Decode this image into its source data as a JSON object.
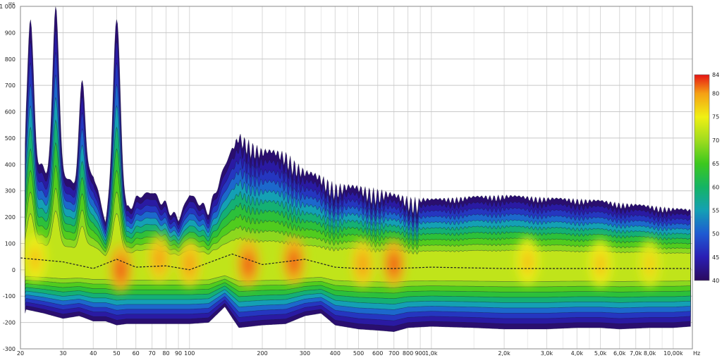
{
  "chart_data": {
    "type": "heatmap",
    "title": "",
    "x_scale": "log",
    "xlim": [
      20,
      12000
    ],
    "ylim": [
      -300,
      1000
    ],
    "x_unit": "Hz",
    "y_unit": "ms",
    "x_ticks": [
      {
        "value": 20,
        "label": "20"
      },
      {
        "value": 30,
        "label": "30"
      },
      {
        "value": 40,
        "label": "40"
      },
      {
        "value": 50,
        "label": "50"
      },
      {
        "value": 60,
        "label": "60"
      },
      {
        "value": 70,
        "label": "70"
      },
      {
        "value": 80,
        "label": "80"
      },
      {
        "value": 90,
        "label": "90"
      },
      {
        "value": 100,
        "label": "100"
      },
      {
        "value": 200,
        "label": "200"
      },
      {
        "value": 300,
        "label": "300"
      },
      {
        "value": 400,
        "label": "400"
      },
      {
        "value": 500,
        "label": "500"
      },
      {
        "value": 600,
        "label": "600"
      },
      {
        "value": 700,
        "label": "700"
      },
      {
        "value": 800,
        "label": "800"
      },
      {
        "value": 900,
        "label": "900"
      },
      {
        "value": 1000,
        "label": "1,0k"
      },
      {
        "value": 2000,
        "label": "2,0k"
      },
      {
        "value": 3000,
        "label": "3,0k"
      },
      {
        "value": 4000,
        "label": "4,0k"
      },
      {
        "value": 5000,
        "label": "5,0k"
      },
      {
        "value": 6000,
        "label": "6,0k"
      },
      {
        "value": 7000,
        "label": "7,0k"
      },
      {
        "value": 8000,
        "label": "8,0k"
      },
      {
        "value": 10000,
        "label": "10,00k"
      }
    ],
    "y_ticks": [
      {
        "value": 1000,
        "label": "1 000"
      },
      {
        "value": 900,
        "label": "900"
      },
      {
        "value": 800,
        "label": "800"
      },
      {
        "value": 700,
        "label": "700"
      },
      {
        "value": 600,
        "label": "600"
      },
      {
        "value": 500,
        "label": "500"
      },
      {
        "value": 400,
        "label": "400"
      },
      {
        "value": 300,
        "label": "300"
      },
      {
        "value": 200,
        "label": "200"
      },
      {
        "value": 100,
        "label": "100"
      },
      {
        "value": 0,
        "label": "0"
      },
      {
        "value": -100,
        "label": "-100"
      },
      {
        "value": -200,
        "label": "-200"
      },
      {
        "value": -300,
        "label": "-300"
      }
    ],
    "colorbar": {
      "min": 40,
      "max": 84,
      "labels": [
        "84",
        "80",
        "75",
        "70",
        "65",
        "60",
        "55",
        "50",
        "45",
        "40"
      ],
      "stops": [
        {
          "value": 40,
          "color": "#2a0a5e"
        },
        {
          "value": 45,
          "color": "#2a1eb4"
        },
        {
          "value": 50,
          "color": "#1e5ad2"
        },
        {
          "value": 55,
          "color": "#14a0b4"
        },
        {
          "value": 60,
          "color": "#14b464"
        },
        {
          "value": 65,
          "color": "#3cc81e"
        },
        {
          "value": 70,
          "color": "#a0dc1e"
        },
        {
          "value": 75,
          "color": "#f0f014"
        },
        {
          "value": 80,
          "color": "#f5a014"
        },
        {
          "value": 84,
          "color": "#e61414"
        }
      ]
    },
    "ridge": [
      {
        "f": 20,
        "top": -300,
        "bottom": -300
      },
      {
        "f": 21,
        "top": 420,
        "bottom": -150
      },
      {
        "f": 25,
        "top": 400,
        "bottom": -165
      },
      {
        "f": 30,
        "top": 360,
        "bottom": -185
      },
      {
        "f": 35,
        "top": 320,
        "bottom": -175
      },
      {
        "f": 40,
        "top": 380,
        "bottom": -195
      },
      {
        "f": 45,
        "top": 180,
        "bottom": -195
      },
      {
        "f": 50,
        "top": 500,
        "bottom": -210
      },
      {
        "f": 55,
        "top": 240,
        "bottom": -205
      },
      {
        "f": 60,
        "top": 280,
        "bottom": -205
      },
      {
        "f": 70,
        "top": 300,
        "bottom": -205
      },
      {
        "f": 80,
        "top": 260,
        "bottom": -205
      },
      {
        "f": 90,
        "top": 200,
        "bottom": -205
      },
      {
        "f": 100,
        "top": 290,
        "bottom": -205
      },
      {
        "f": 120,
        "top": 240,
        "bottom": -200
      },
      {
        "f": 140,
        "top": 400,
        "bottom": -140
      },
      {
        "f": 160,
        "top": 520,
        "bottom": -220
      },
      {
        "f": 200,
        "top": 460,
        "bottom": -210
      },
      {
        "f": 250,
        "top": 450,
        "bottom": -205
      },
      {
        "f": 300,
        "top": 380,
        "bottom": -175
      },
      {
        "f": 350,
        "top": 360,
        "bottom": -165
      },
      {
        "f": 400,
        "top": 330,
        "bottom": -210
      },
      {
        "f": 500,
        "top": 320,
        "bottom": -225
      },
      {
        "f": 600,
        "top": 310,
        "bottom": -230
      },
      {
        "f": 700,
        "top": 290,
        "bottom": -235
      },
      {
        "f": 800,
        "top": 280,
        "bottom": -220
      },
      {
        "f": 1000,
        "top": 270,
        "bottom": -215
      },
      {
        "f": 1500,
        "top": 280,
        "bottom": -220
      },
      {
        "f": 2000,
        "top": 285,
        "bottom": -225
      },
      {
        "f": 3000,
        "top": 275,
        "bottom": -225
      },
      {
        "f": 4000,
        "top": 270,
        "bottom": -220
      },
      {
        "f": 5000,
        "top": 265,
        "bottom": -220
      },
      {
        "f": 6000,
        "top": 255,
        "bottom": -225
      },
      {
        "f": 8000,
        "top": 245,
        "bottom": -220
      },
      {
        "f": 10000,
        "top": 235,
        "bottom": -220
      },
      {
        "f": 11800,
        "top": 230,
        "bottom": -215
      }
    ],
    "low_freq_spikes": [
      {
        "f": 22,
        "top": 950
      },
      {
        "f": 28,
        "top": 1000
      },
      {
        "f": 36,
        "top": 720
      },
      {
        "f": 50,
        "top": 950
      }
    ],
    "hotspots": [
      {
        "f": 23,
        "t": 40,
        "level": 78
      },
      {
        "f": 52,
        "t": 0,
        "level": 82
      },
      {
        "f": 75,
        "t": 40,
        "level": 80
      },
      {
        "f": 100,
        "t": 20,
        "level": 80
      },
      {
        "f": 175,
        "t": 20,
        "level": 82
      },
      {
        "f": 270,
        "t": 30,
        "level": 82
      },
      {
        "f": 520,
        "t": 20,
        "level": 80
      },
      {
        "f": 700,
        "t": 20,
        "level": 82
      },
      {
        "f": 2500,
        "t": 30,
        "level": 78
      },
      {
        "f": 5000,
        "t": 20,
        "level": 78
      },
      {
        "f": 8000,
        "t": 20,
        "level": 77
      }
    ],
    "peak_path": [
      {
        "f": 20,
        "t": 45
      },
      {
        "f": 30,
        "t": 30
      },
      {
        "f": 40,
        "t": 5
      },
      {
        "f": 50,
        "t": 40
      },
      {
        "f": 60,
        "t": 10
      },
      {
        "f": 80,
        "t": 15
      },
      {
        "f": 100,
        "t": 0
      },
      {
        "f": 150,
        "t": 60
      },
      {
        "f": 200,
        "t": 20
      },
      {
        "f": 300,
        "t": 40
      },
      {
        "f": 400,
        "t": 10
      },
      {
        "f": 500,
        "t": 5
      },
      {
        "f": 700,
        "t": 5
      },
      {
        "f": 1000,
        "t": 10
      },
      {
        "f": 2000,
        "t": 5
      },
      {
        "f": 4000,
        "t": 5
      },
      {
        "f": 8000,
        "t": 5
      },
      {
        "f": 11800,
        "t": 5
      }
    ]
  }
}
